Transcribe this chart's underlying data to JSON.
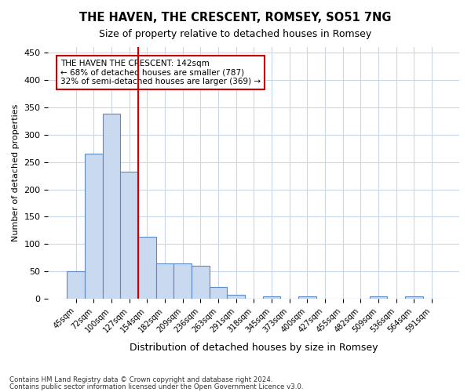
{
  "title": "THE HAVEN, THE CRESCENT, ROMSEY, SO51 7NG",
  "subtitle": "Size of property relative to detached houses in Romsey",
  "xlabel": "Distribution of detached houses by size in Romsey",
  "ylabel": "Number of detached properties",
  "bin_labels": [
    "45sqm",
    "72sqm",
    "100sqm",
    "127sqm",
    "154sqm",
    "182sqm",
    "209sqm",
    "236sqm",
    "263sqm",
    "291sqm",
    "318sqm",
    "345sqm",
    "373sqm",
    "400sqm",
    "427sqm",
    "455sqm",
    "482sqm",
    "509sqm",
    "536sqm",
    "564sqm",
    "591sqm"
  ],
  "bar_heights": [
    50,
    265,
    338,
    232,
    113,
    65,
    65,
    60,
    22,
    7,
    0,
    4,
    0,
    4,
    0,
    0,
    0,
    4,
    0,
    4,
    0
  ],
  "bar_color": "#c9d9f0",
  "bar_edge_color": "#5b8ac5",
  "vline_x": 3.5,
  "vline_color": "#cc0000",
  "ylim": [
    0,
    460
  ],
  "yticks": [
    0,
    50,
    100,
    150,
    200,
    250,
    300,
    350,
    400,
    450
  ],
  "annotation_title": "THE HAVEN THE CRESCENT: 142sqm",
  "annotation_line1": "← 68% of detached houses are smaller (787)",
  "annotation_line2": "32% of semi-detached houses are larger (369) →",
  "footer1": "Contains HM Land Registry data © Crown copyright and database right 2024.",
  "footer2": "Contains public sector information licensed under the Open Government Licence v3.0.",
  "bg_color": "#ffffff",
  "grid_color": "#c8d8e8"
}
